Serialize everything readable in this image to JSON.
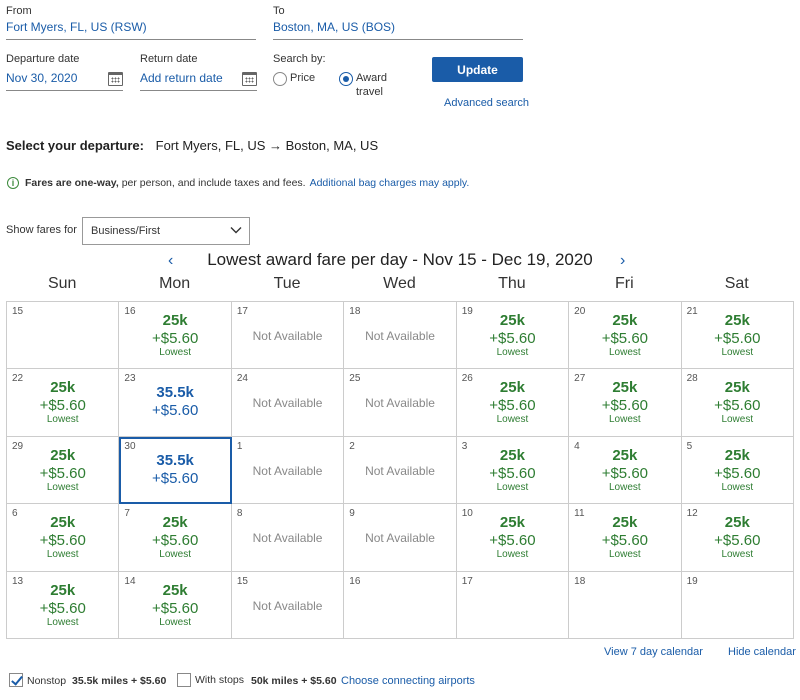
{
  "search": {
    "from_label": "From",
    "from_value": "Fort Myers, FL, US (RSW)",
    "to_label": "To",
    "to_value": "Boston, MA, US (BOS)",
    "departure_label": "Departure date",
    "departure_value": "Nov 30, 2020",
    "return_label": "Return date",
    "return_placeholder": "Add return date",
    "search_by_label": "Search by:",
    "price_label": "Price",
    "award_label_1": "Award",
    "award_label_2": "travel",
    "selected_search_by": "award",
    "update_label": "Update",
    "advanced_search_label": "Advanced search"
  },
  "selection": {
    "heading_bold": "Select your departure:",
    "route": "Fort Myers, FL, US → Boston, MA, US"
  },
  "info": {
    "bold": "Fares are one-way,",
    "text": " per person, and include taxes and fees.",
    "link": "Additional bag charges may apply."
  },
  "filter": {
    "label": "Show fares for",
    "value": "Business/First"
  },
  "calendar": {
    "title": "Lowest award fare per day - Nov 15 - Dec 19, 2020",
    "days_of_week": [
      "Sun",
      "Mon",
      "Tue",
      "Wed",
      "Thu",
      "Fri",
      "Sat"
    ],
    "not_available_label": "Not Available",
    "lowest_label": "Lowest",
    "cells": [
      {
        "day": "15",
        "status": "empty"
      },
      {
        "day": "16",
        "status": "low",
        "miles": "25k",
        "tax": "+$5.60"
      },
      {
        "day": "17",
        "status": "na"
      },
      {
        "day": "18",
        "status": "na"
      },
      {
        "day": "19",
        "status": "low",
        "miles": "25k",
        "tax": "+$5.60"
      },
      {
        "day": "20",
        "status": "low",
        "miles": "25k",
        "tax": "+$5.60"
      },
      {
        "day": "21",
        "status": "low",
        "miles": "25k",
        "tax": "+$5.60"
      },
      {
        "day": "22",
        "status": "low",
        "miles": "25k",
        "tax": "+$5.60"
      },
      {
        "day": "23",
        "status": "high",
        "miles": "35.5k",
        "tax": "+$5.60"
      },
      {
        "day": "24",
        "status": "na"
      },
      {
        "day": "25",
        "status": "na"
      },
      {
        "day": "26",
        "status": "low",
        "miles": "25k",
        "tax": "+$5.60"
      },
      {
        "day": "27",
        "status": "low",
        "miles": "25k",
        "tax": "+$5.60"
      },
      {
        "day": "28",
        "status": "low",
        "miles": "25k",
        "tax": "+$5.60"
      },
      {
        "day": "29",
        "status": "low",
        "miles": "25k",
        "tax": "+$5.60"
      },
      {
        "day": "30",
        "status": "high",
        "miles": "35.5k",
        "tax": "+$5.60",
        "selected": true
      },
      {
        "day": "1",
        "status": "na"
      },
      {
        "day": "2",
        "status": "na"
      },
      {
        "day": "3",
        "status": "low",
        "miles": "25k",
        "tax": "+$5.60"
      },
      {
        "day": "4",
        "status": "low",
        "miles": "25k",
        "tax": "+$5.60"
      },
      {
        "day": "5",
        "status": "low",
        "miles": "25k",
        "tax": "+$5.60"
      },
      {
        "day": "6",
        "status": "low",
        "miles": "25k",
        "tax": "+$5.60"
      },
      {
        "day": "7",
        "status": "low",
        "miles": "25k",
        "tax": "+$5.60"
      },
      {
        "day": "8",
        "status": "na"
      },
      {
        "day": "9",
        "status": "na"
      },
      {
        "day": "10",
        "status": "low",
        "miles": "25k",
        "tax": "+$5.60"
      },
      {
        "day": "11",
        "status": "low",
        "miles": "25k",
        "tax": "+$5.60"
      },
      {
        "day": "12",
        "status": "low",
        "miles": "25k",
        "tax": "+$5.60"
      },
      {
        "day": "13",
        "status": "low",
        "miles": "25k",
        "tax": "+$5.60"
      },
      {
        "day": "14",
        "status": "low",
        "miles": "25k",
        "tax": "+$5.60"
      },
      {
        "day": "15",
        "status": "na"
      },
      {
        "day": "16",
        "status": "empty"
      },
      {
        "day": "17",
        "status": "empty"
      },
      {
        "day": "18",
        "status": "empty"
      },
      {
        "day": "19",
        "status": "empty"
      }
    ],
    "view7_label": "View 7 day calendar",
    "hide_label": "Hide calendar"
  },
  "stops": {
    "nonstop_label": "Nonstop",
    "nonstop_checked": true,
    "nonstop_price": "35.5k miles + $5.60",
    "with_stops_label": "With stops",
    "with_stops_checked": false,
    "with_stops_price": "50k miles + $5.60",
    "connecting_link": "Choose connecting airports"
  }
}
